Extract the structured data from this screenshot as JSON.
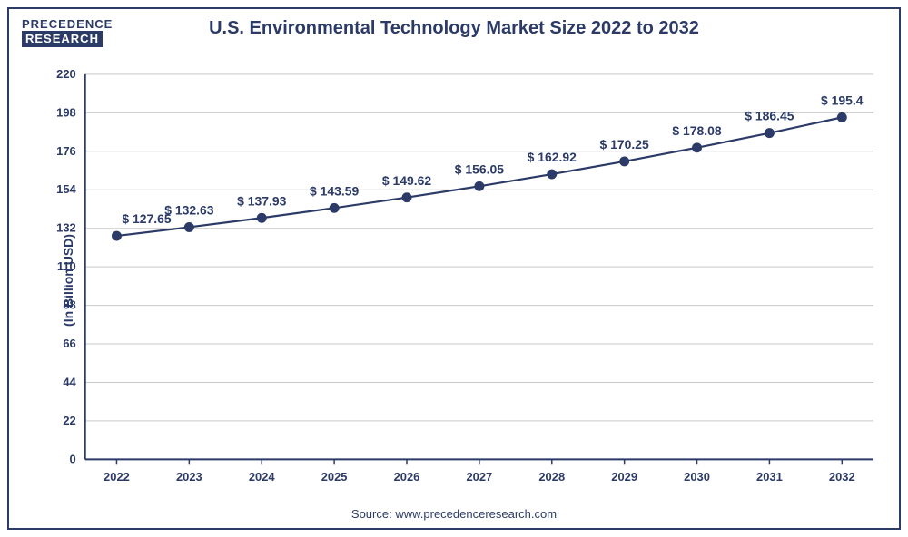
{
  "logo": {
    "top": "PRECEDENCE",
    "bottom": "RESEARCH"
  },
  "title": "U.S. Environmental Technology Market Size 2022 to 2032",
  "source": "Source: www.precedenceresearch.com",
  "chart": {
    "type": "line",
    "ylabel": "(In Billion USD)",
    "categories": [
      "2022",
      "2023",
      "2024",
      "2025",
      "2026",
      "2027",
      "2028",
      "2029",
      "2030",
      "2031",
      "2032"
    ],
    "values": [
      127.65,
      132.63,
      137.93,
      143.59,
      149.62,
      156.05,
      162.92,
      170.25,
      178.08,
      186.45,
      195.4
    ],
    "data_labels": [
      "$ 127.65",
      "$ 132.63",
      "$ 137.93",
      "$ 143.59",
      "$ 149.62",
      "$ 156.05",
      "$ 162.92",
      "$ 170.25",
      "$ 178.08",
      "$ 186.45",
      "$ 195.4"
    ],
    "ylim": [
      0,
      220
    ],
    "yticks": [
      0,
      22,
      44,
      66,
      88,
      110,
      132,
      154,
      176,
      198,
      220
    ],
    "line_color": "#2b3a67",
    "marker_color": "#2b3a67",
    "marker_radius": 5.5,
    "line_width": 2.2,
    "axis_color": "#2b3a67",
    "grid_color": "#c9c9c9",
    "background_color": "#ffffff",
    "tick_fontsize": 13,
    "label_fontsize": 14,
    "datalabel_fontsize": 14,
    "title_fontsize": 20
  }
}
